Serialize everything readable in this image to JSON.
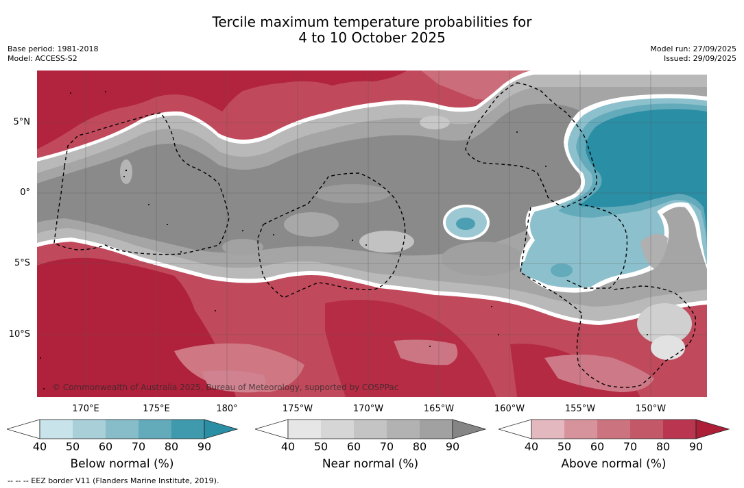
{
  "title": {
    "line1": "Tercile maximum temperature probabilities for",
    "line2": "4 to 10 October 2025"
  },
  "info": {
    "base_period": "Base period: 1981-2018",
    "model": "Model: ACCESS-S2",
    "model_run": "Model run: 27/09/2025",
    "issued": "Issued: 29/09/2025"
  },
  "map": {
    "lat_labels": [
      "5°N",
      "0°",
      "5°S",
      "10°S"
    ],
    "lon_labels": [
      "170°E",
      "175°E",
      "180°",
      "175°W",
      "170°W",
      "165°W",
      "160°W",
      "155°W",
      "150°W"
    ],
    "credit": "© Commonwealth of Australia 2025, Bureau of Meteorology, supported by COSPPac",
    "regions": [
      "above normal",
      "near normal",
      "below normal"
    ]
  },
  "colorbars": [
    {
      "label": "Below normal (%)",
      "ticks": [
        "40",
        "50",
        "60",
        "70",
        "80",
        "90"
      ],
      "colors": [
        "#ffffff",
        "#c9e3ea",
        "#a9cfd9",
        "#86bdc9",
        "#63aabb",
        "#3f9aae",
        "#2a8ea5"
      ]
    },
    {
      "label": "Near normal (%)",
      "ticks": [
        "40",
        "50",
        "60",
        "70",
        "80",
        "90"
      ],
      "colors": [
        "#ffffff",
        "#e6e6e6",
        "#d6d6d6",
        "#c4c4c4",
        "#b2b2b2",
        "#a1a1a1",
        "#858585"
      ]
    },
    {
      "label": "Above normal (%)",
      "ticks": [
        "40",
        "50",
        "60",
        "70",
        "80",
        "90"
      ],
      "colors": [
        "#ffffff",
        "#e3b8be",
        "#d6939c",
        "#cb7480",
        "#c35868",
        "#b93550",
        "#ad1e37"
      ]
    }
  ],
  "footer": "--  --  -- EEZ border V11 (Flanders Marine Institute, 2019)."
}
